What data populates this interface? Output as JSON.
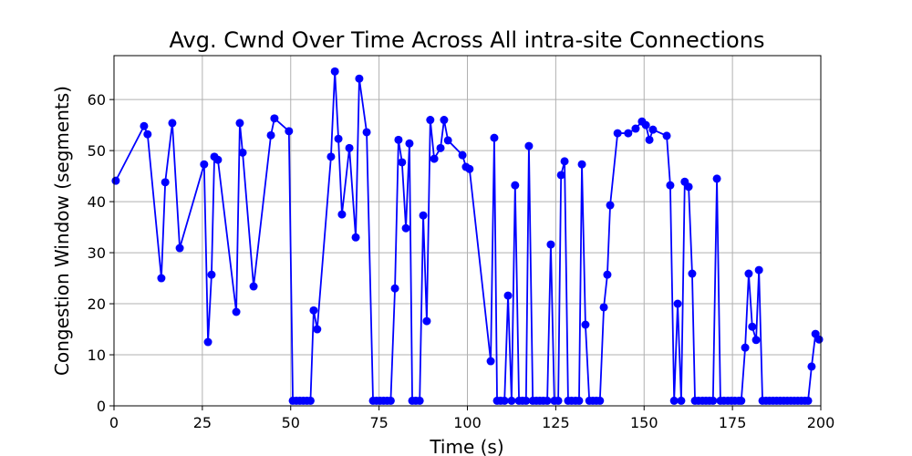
{
  "chart_data": {
    "type": "line",
    "title": "Avg. Cwnd Over Time Across All intra-site Connections",
    "xlabel": "Time (s)",
    "ylabel": "Congestion Window (segments)",
    "xlim": [
      0,
      200
    ],
    "ylim": [
      0,
      68.6
    ],
    "xticks": [
      0,
      25,
      50,
      75,
      100,
      125,
      150,
      175,
      200
    ],
    "yticks": [
      0,
      10,
      20,
      30,
      40,
      50,
      60
    ],
    "grid": true,
    "series": [
      {
        "name": "Avg. Cwnd",
        "color": "#0000ff",
        "x": [
          0.5,
          8.5,
          9.5,
          13.4,
          14.5,
          16.5,
          18.6,
          25.5,
          26.6,
          27.6,
          28.4,
          29.4,
          34.6,
          35.6,
          36.4,
          39.5,
          44.4,
          45.4,
          49.5,
          50.6,
          51.6,
          52.6,
          53.6,
          54.6,
          55.6,
          56.5,
          57.5,
          61.4,
          62.5,
          63.5,
          64.5,
          66.6,
          68.4,
          69.4,
          71.5,
          73.3,
          74.3,
          75.3,
          76.3,
          77.3,
          78.3,
          79.5,
          80.5,
          81.5,
          82.6,
          83.6,
          84.4,
          85.4,
          86.5,
          87.5,
          88.5,
          89.5,
          90.6,
          92.4,
          93.4,
          94.5,
          98.6,
          99.6,
          100.6,
          106.6,
          107.6,
          108.4,
          109.4,
          110.5,
          111.5,
          112.5,
          113.5,
          114.6,
          115.6,
          116.6,
          117.4,
          118.5,
          119.5,
          120.5,
          121.5,
          122.6,
          123.6,
          124.6,
          125.7,
          126.5,
          127.5,
          128.5,
          129.5,
          130.6,
          131.6,
          132.4,
          133.4,
          134.5,
          135.5,
          136.5,
          137.5,
          138.6,
          139.6,
          140.4,
          142.5,
          145.5,
          147.6,
          149.4,
          150.5,
          151.5,
          152.5,
          156.4,
          157.4,
          158.5,
          159.5,
          160.5,
          161.5,
          162.6,
          163.6,
          164.4,
          165.4,
          166.5,
          167.5,
          168.5,
          169.5,
          170.6,
          171.6,
          172.6,
          173.7,
          174.7,
          175.7,
          176.8,
          177.5,
          178.6,
          179.6,
          180.6,
          181.7,
          182.5,
          183.5,
          184.5,
          185.5,
          186.5,
          187.5,
          188.5,
          189.5,
          190.5,
          191.5,
          192.5,
          193.5,
          194.5,
          195.5,
          196.4,
          197.4,
          198.5,
          199.5
        ],
        "values": [
          44.1,
          54.8,
          53.2,
          25,
          43.8,
          55.4,
          30.9,
          47.3,
          12.5,
          25.7,
          48.8,
          48.2,
          18.4,
          55.4,
          49.6,
          23.4,
          53,
          56.3,
          53.8,
          1,
          1,
          1,
          1,
          1,
          1,
          18.7,
          15,
          48.8,
          65.5,
          52.3,
          37.5,
          50.5,
          33,
          64.1,
          53.6,
          1,
          1,
          1,
          1,
          1,
          1,
          23,
          52.1,
          47.7,
          34.8,
          51.4,
          1,
          1,
          1,
          37.3,
          16.6,
          56,
          48.4,
          50.5,
          56,
          52,
          49.1,
          46.8,
          46.4,
          8.75,
          52.5,
          1,
          1,
          1,
          21.6,
          1,
          43.2,
          1,
          1,
          1,
          50.9,
          1,
          1,
          1,
          1,
          1,
          31.6,
          1,
          1,
          45.2,
          47.9,
          1,
          1,
          1,
          1,
          47.3,
          15.9,
          1,
          1,
          1,
          1,
          19.3,
          25.7,
          39.3,
          53.4,
          53.4,
          54.3,
          55.7,
          55,
          52.1,
          54.1,
          52.9,
          43.2,
          1,
          20,
          1,
          43.9,
          42.9,
          25.9,
          1,
          1,
          1,
          1,
          1,
          1,
          44.5,
          1,
          1,
          1,
          1,
          1,
          1,
          1,
          11.4,
          25.9,
          15.5,
          12.9,
          26.6,
          1,
          1,
          1,
          1,
          1,
          1,
          1,
          1,
          1,
          1,
          1,
          1,
          1,
          1,
          7.7,
          14.1,
          13
        ]
      }
    ]
  }
}
